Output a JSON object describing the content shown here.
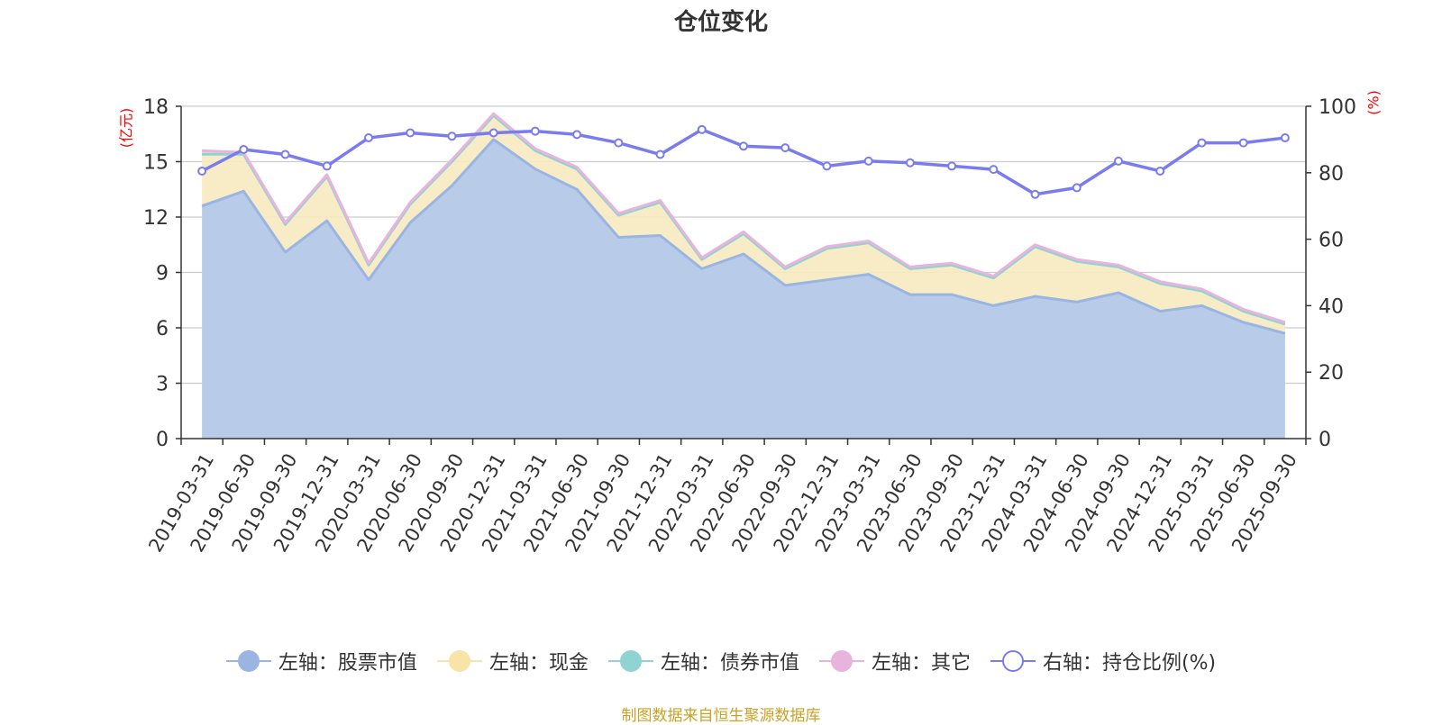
{
  "title": "仓位变化",
  "footer": "制图数据来自恒生聚源数据库",
  "chart_data": {
    "type": "area",
    "title": "仓位变化",
    "categories": [
      "2019-03-31",
      "2019-06-30",
      "2019-09-30",
      "2019-12-31",
      "2020-03-31",
      "2020-06-30",
      "2020-09-30",
      "2020-12-31",
      "2021-03-31",
      "2021-06-30",
      "2021-09-30",
      "2021-12-31",
      "2022-03-31",
      "2022-06-30",
      "2022-09-30",
      "2022-12-31",
      "2023-03-31",
      "2023-06-30",
      "2023-09-30",
      "2023-12-31",
      "2024-03-31",
      "2024-06-30",
      "2024-09-30",
      "2024-12-31",
      "2025-03-31",
      "2025-06-30",
      "2025-09-30"
    ],
    "left_axis": {
      "label": "(亿元)",
      "ticks": [
        0,
        3,
        6,
        9,
        12,
        15,
        18
      ],
      "range": [
        0,
        18
      ],
      "color": "#ff0000"
    },
    "right_axis": {
      "label": "(%)",
      "ticks": [
        0,
        20,
        40,
        60,
        80,
        100
      ],
      "range": [
        0,
        100
      ],
      "color": "#ff0000"
    },
    "grid": true,
    "legend_position": "bottom",
    "stacked_series": [
      {
        "name": "左轴：股票市值",
        "color": "#9ab5e1",
        "fill": "#b8cbe9",
        "values": [
          12.6,
          13.4,
          10.1,
          11.8,
          8.6,
          11.7,
          13.7,
          16.2,
          14.6,
          13.5,
          10.9,
          11.0,
          9.2,
          10.0,
          8.3,
          8.6,
          8.9,
          7.8,
          7.8,
          7.2,
          7.7,
          7.4,
          7.9,
          6.9,
          7.2,
          6.3,
          5.7
        ]
      },
      {
        "name": "左轴：现金",
        "color": "#f7e4a6",
        "fill": "#f7eac0",
        "values": [
          2.8,
          2.0,
          1.5,
          2.4,
          0.8,
          1.0,
          1.3,
          1.3,
          1.0,
          1.1,
          1.2,
          1.8,
          0.5,
          1.1,
          0.9,
          1.7,
          1.7,
          1.4,
          1.6,
          1.5,
          2.7,
          2.2,
          1.4,
          1.5,
          0.8,
          0.6,
          0.5
        ]
      },
      {
        "name": "左轴：债券市值",
        "color": "#8fd3d3",
        "fill": "#a8dcd9",
        "values": [
          0,
          0,
          0,
          0,
          0,
          0,
          0,
          0,
          0,
          0,
          0,
          0,
          0,
          0,
          0,
          0,
          0,
          0,
          0,
          0,
          0,
          0,
          0,
          0,
          0,
          0,
          0
        ]
      },
      {
        "name": "左轴：其它",
        "color": "#e8b3dc",
        "fill": "#f0cbe6",
        "values": [
          0.2,
          0.1,
          0.1,
          0.1,
          0.1,
          0.1,
          0.1,
          0.1,
          0.1,
          0.1,
          0.1,
          0.1,
          0.1,
          0.1,
          0.1,
          0.1,
          0.1,
          0.1,
          0.1,
          0.1,
          0.1,
          0.1,
          0.1,
          0.1,
          0.1,
          0.1,
          0.1
        ]
      }
    ],
    "line_series": {
      "name": "右轴：持仓比例(%)",
      "axis": "right",
      "color": "#7b7bf0",
      "values": [
        80.5,
        87.0,
        85.5,
        82.0,
        90.5,
        92.0,
        91.0,
        92.0,
        92.5,
        91.5,
        89.0,
        85.5,
        93.0,
        88.0,
        87.5,
        82.0,
        83.5,
        83.0,
        82.0,
        81.0,
        73.5,
        75.5,
        83.5,
        80.5,
        89.0,
        89.0,
        90.5
      ]
    }
  },
  "legend": [
    {
      "label": "左轴：股票市值",
      "color": "#9ab5e1",
      "fill": "#9ab5e1"
    },
    {
      "label": "左轴：现金",
      "color": "#f7e4a6",
      "fill": "#f7e4a6"
    },
    {
      "label": "左轴：债券市值",
      "color": "#8fd3d3",
      "fill": "#8fd3d3"
    },
    {
      "label": "左轴：其它",
      "color": "#e8b3dc",
      "fill": "#e8b3dc"
    },
    {
      "label": "右轴：持仓比例(%)",
      "color": "#7b7bf0",
      "fill": "#ffffff"
    }
  ]
}
